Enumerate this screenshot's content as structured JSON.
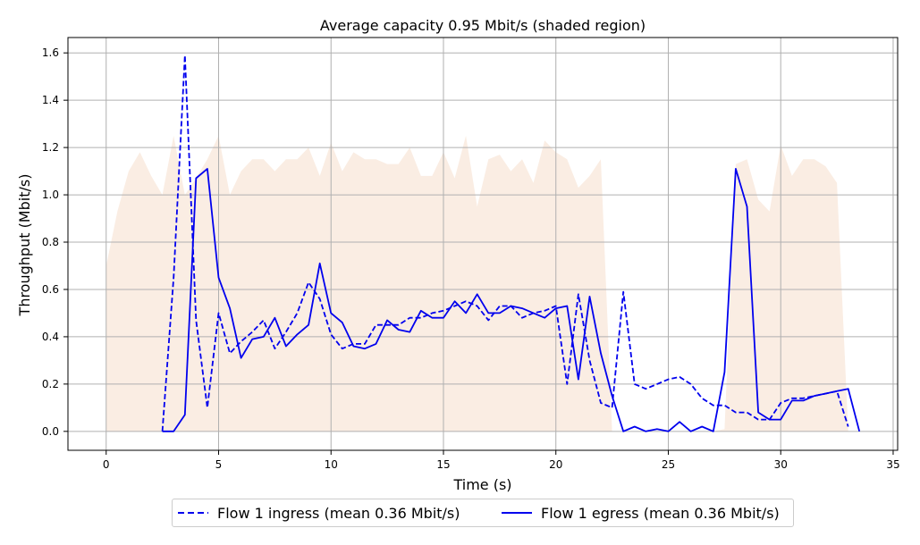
{
  "chart_data": {
    "type": "line",
    "title": "Average capacity 0.95 Mbit/s (shaded region)",
    "xlabel": "Time (s)",
    "ylabel": "Throughput (Mbit/s)",
    "xlim": [
      -1.7,
      35.2
    ],
    "ylim": [
      -0.08,
      1.665
    ],
    "xticks": [
      0,
      5,
      10,
      15,
      20,
      25,
      30,
      35
    ],
    "yticks": [
      0.0,
      0.2,
      0.4,
      0.6,
      0.8,
      1.0,
      1.2,
      1.4,
      1.6
    ],
    "grid": true,
    "legend_position": "bottom-center",
    "capacity": {
      "color": "#faede3",
      "x": [
        0,
        0.5,
        1,
        1.5,
        2,
        2.5,
        3,
        3.5,
        4,
        4.5,
        5,
        5.5,
        6,
        6.5,
        7,
        7.5,
        8,
        8.5,
        9,
        9.5,
        10,
        10.5,
        11,
        11.5,
        12,
        12.5,
        13,
        13.5,
        14,
        14.5,
        15,
        15.5,
        16,
        16.5,
        17,
        17.5,
        18,
        18.5,
        19,
        19.5,
        20,
        20.5,
        21,
        21.5,
        22,
        22.5,
        23,
        23.5,
        24,
        24.5,
        25,
        25.5,
        26,
        26.5,
        27,
        27.5,
        28,
        28.5,
        29,
        29.5,
        30,
        30.5,
        31,
        31.5,
        32,
        32.5,
        33
      ],
      "y": [
        0.7,
        0.93,
        1.1,
        1.18,
        1.08,
        1.0,
        1.25,
        1.0,
        1.07,
        1.15,
        1.25,
        1.0,
        1.1,
        1.15,
        1.15,
        1.1,
        1.15,
        1.15,
        1.2,
        1.08,
        1.22,
        1.1,
        1.18,
        1.15,
        1.15,
        1.13,
        1.13,
        1.2,
        1.08,
        1.08,
        1.18,
        1.07,
        1.25,
        0.95,
        1.15,
        1.17,
        1.1,
        1.15,
        1.05,
        1.23,
        1.18,
        1.15,
        1.03,
        1.08,
        1.15,
        0,
        0,
        0,
        0,
        0,
        0,
        0,
        0,
        0,
        0,
        0.01,
        1.13,
        1.15,
        0.98,
        0.93,
        1.21,
        1.08,
        1.15,
        1.15,
        1.12,
        1.05,
        0
      ]
    },
    "series": [
      {
        "name": "Flow 1 ingress (mean 0.36 Mbit/s)",
        "color": "#0000ee",
        "dash": "dashed",
        "x": [
          2.5,
          3.0,
          3.5,
          4.0,
          4.5,
          5.0,
          5.5,
          6.0,
          6.5,
          7.0,
          7.5,
          8.0,
          8.5,
          9.0,
          9.5,
          10.0,
          10.5,
          11.0,
          11.5,
          12.0,
          12.5,
          13.0,
          13.5,
          14.0,
          14.5,
          15.0,
          15.5,
          16.0,
          16.5,
          17.0,
          17.5,
          18.0,
          18.5,
          19.0,
          19.5,
          20.0,
          20.5,
          21.0,
          21.5,
          22.0,
          22.5,
          23.0,
          23.5,
          24.0,
          24.5,
          25.0,
          25.5,
          26.0,
          26.5,
          27.0,
          27.5,
          28.0,
          28.5,
          29.0,
          29.5,
          30.0,
          30.5,
          31.0,
          31.5,
          32.0,
          32.5,
          33.0
        ],
        "y": [
          0.0,
          0.65,
          1.59,
          0.47,
          0.1,
          0.5,
          0.33,
          0.38,
          0.42,
          0.47,
          0.35,
          0.42,
          0.5,
          0.63,
          0.56,
          0.41,
          0.35,
          0.37,
          0.37,
          0.45,
          0.45,
          0.45,
          0.48,
          0.48,
          0.5,
          0.51,
          0.53,
          0.55,
          0.53,
          0.47,
          0.53,
          0.53,
          0.48,
          0.5,
          0.51,
          0.53,
          0.2,
          0.58,
          0.3,
          0.12,
          0.1,
          0.59,
          0.2,
          0.18,
          0.2,
          0.22,
          0.23,
          0.2,
          0.14,
          0.11,
          0.11,
          0.08,
          0.08,
          0.05,
          0.05,
          0.12,
          0.14,
          0.14,
          0.15,
          0.16,
          0.17,
          0.02
        ]
      },
      {
        "name": "Flow 1 egress (mean 0.36 Mbit/s)",
        "color": "#0000ee",
        "dash": "solid",
        "x": [
          2.5,
          3.0,
          3.5,
          4.0,
          4.5,
          5.0,
          5.5,
          6.0,
          6.5,
          7.0,
          7.5,
          8.0,
          8.5,
          9.0,
          9.5,
          10.0,
          10.5,
          11.0,
          11.5,
          12.0,
          12.5,
          13.0,
          13.5,
          14.0,
          14.5,
          15.0,
          15.5,
          16.0,
          16.5,
          17.0,
          17.5,
          18.0,
          18.5,
          19.0,
          19.5,
          20.0,
          20.5,
          21.0,
          21.5,
          22.0,
          22.5,
          23.0,
          23.5,
          24.0,
          24.5,
          25.0,
          25.5,
          26.0,
          26.5,
          27.0,
          27.5,
          28.0,
          28.5,
          29.0,
          29.5,
          30.0,
          30.5,
          31.0,
          31.5,
          32.0,
          32.5,
          33.0,
          33.5
        ],
        "y": [
          0.0,
          0.0,
          0.07,
          1.07,
          1.11,
          0.65,
          0.52,
          0.31,
          0.39,
          0.4,
          0.48,
          0.36,
          0.41,
          0.45,
          0.71,
          0.5,
          0.46,
          0.36,
          0.35,
          0.37,
          0.47,
          0.43,
          0.42,
          0.51,
          0.48,
          0.48,
          0.55,
          0.5,
          0.58,
          0.5,
          0.5,
          0.53,
          0.52,
          0.5,
          0.48,
          0.52,
          0.53,
          0.22,
          0.57,
          0.33,
          0.15,
          0.0,
          0.02,
          0.0,
          0.01,
          0.0,
          0.04,
          0.0,
          0.02,
          0.0,
          0.25,
          1.11,
          0.95,
          0.08,
          0.05,
          0.05,
          0.13,
          0.13,
          0.15,
          0.16,
          0.17,
          0.18,
          0.0
        ]
      }
    ]
  }
}
